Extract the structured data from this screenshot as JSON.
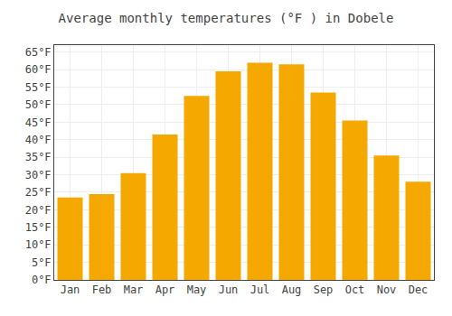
{
  "chart_data": {
    "type": "bar",
    "title": "Average monthly temperatures (°F ) in Dobele",
    "categories": [
      "Jan",
      "Feb",
      "Mar",
      "Apr",
      "May",
      "Jun",
      "Jul",
      "Aug",
      "Sep",
      "Oct",
      "Nov",
      "Dec"
    ],
    "values": [
      23.5,
      24.5,
      30.5,
      41.5,
      52.5,
      59.5,
      62.0,
      61.5,
      53.5,
      45.5,
      35.5,
      28.0
    ],
    "color": "#F5A800",
    "ylim": [
      0,
      67
    ],
    "yticks": [
      {
        "value": 0,
        "label": "0°F"
      },
      {
        "value": 5,
        "label": "5°F"
      },
      {
        "value": 10,
        "label": "10°F"
      },
      {
        "value": 15,
        "label": "15°F"
      },
      {
        "value": 20,
        "label": "20°F"
      },
      {
        "value": 25,
        "label": "25°F"
      },
      {
        "value": 30,
        "label": "30°F"
      },
      {
        "value": 35,
        "label": "35°F"
      },
      {
        "value": 40,
        "label": "40°F"
      },
      {
        "value": 45,
        "label": "45°F"
      },
      {
        "value": 50,
        "label": "50°F"
      },
      {
        "value": 55,
        "label": "55°F"
      },
      {
        "value": 60,
        "label": "60°F"
      },
      {
        "value": 65,
        "label": "65°F"
      }
    ],
    "grid": true
  }
}
